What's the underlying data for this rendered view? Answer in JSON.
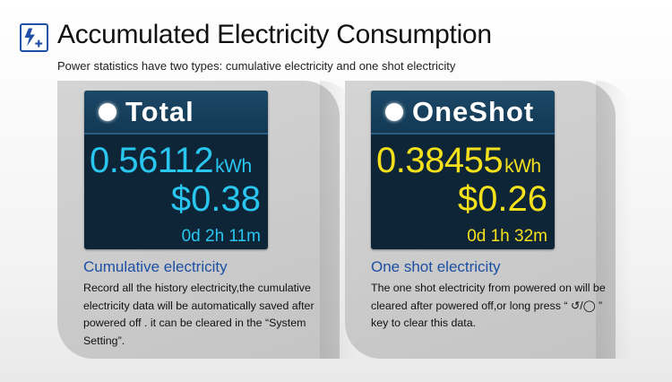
{
  "header": {
    "icon": "lightning-plus-icon",
    "title": "Accumulated Electricity Consumption",
    "subtitle": "Power statistics have two types: cumulative electricity and one shot electricity"
  },
  "cards": [
    {
      "screen_title": "Total",
      "energy_value": "0.56112",
      "energy_unit": "kWh",
      "cost": "$0.38",
      "duration": "0d 2h 11m",
      "value_color": "#29c6f0",
      "heading": "Cumulative electricity",
      "body": "Record all the history electricity,the cumulative electricity data will be automatically saved after powered off . it can be cleared in the “System Setting”."
    },
    {
      "screen_title": "OneShot",
      "energy_value": "0.38455",
      "energy_unit": "kWh",
      "cost": "$0.26",
      "duration": "0d 1h 32m",
      "value_color": "#f5e11b",
      "heading": "One shot electricity",
      "body": "The one shot electricity from powered on will be cleared after powered off,or long press “ ↺/◯ ” key to clear this data."
    }
  ],
  "colors": {
    "accent": "#1d4fa3",
    "screen_bg": "#0e2437",
    "card_bg": "#cbcbcb"
  }
}
